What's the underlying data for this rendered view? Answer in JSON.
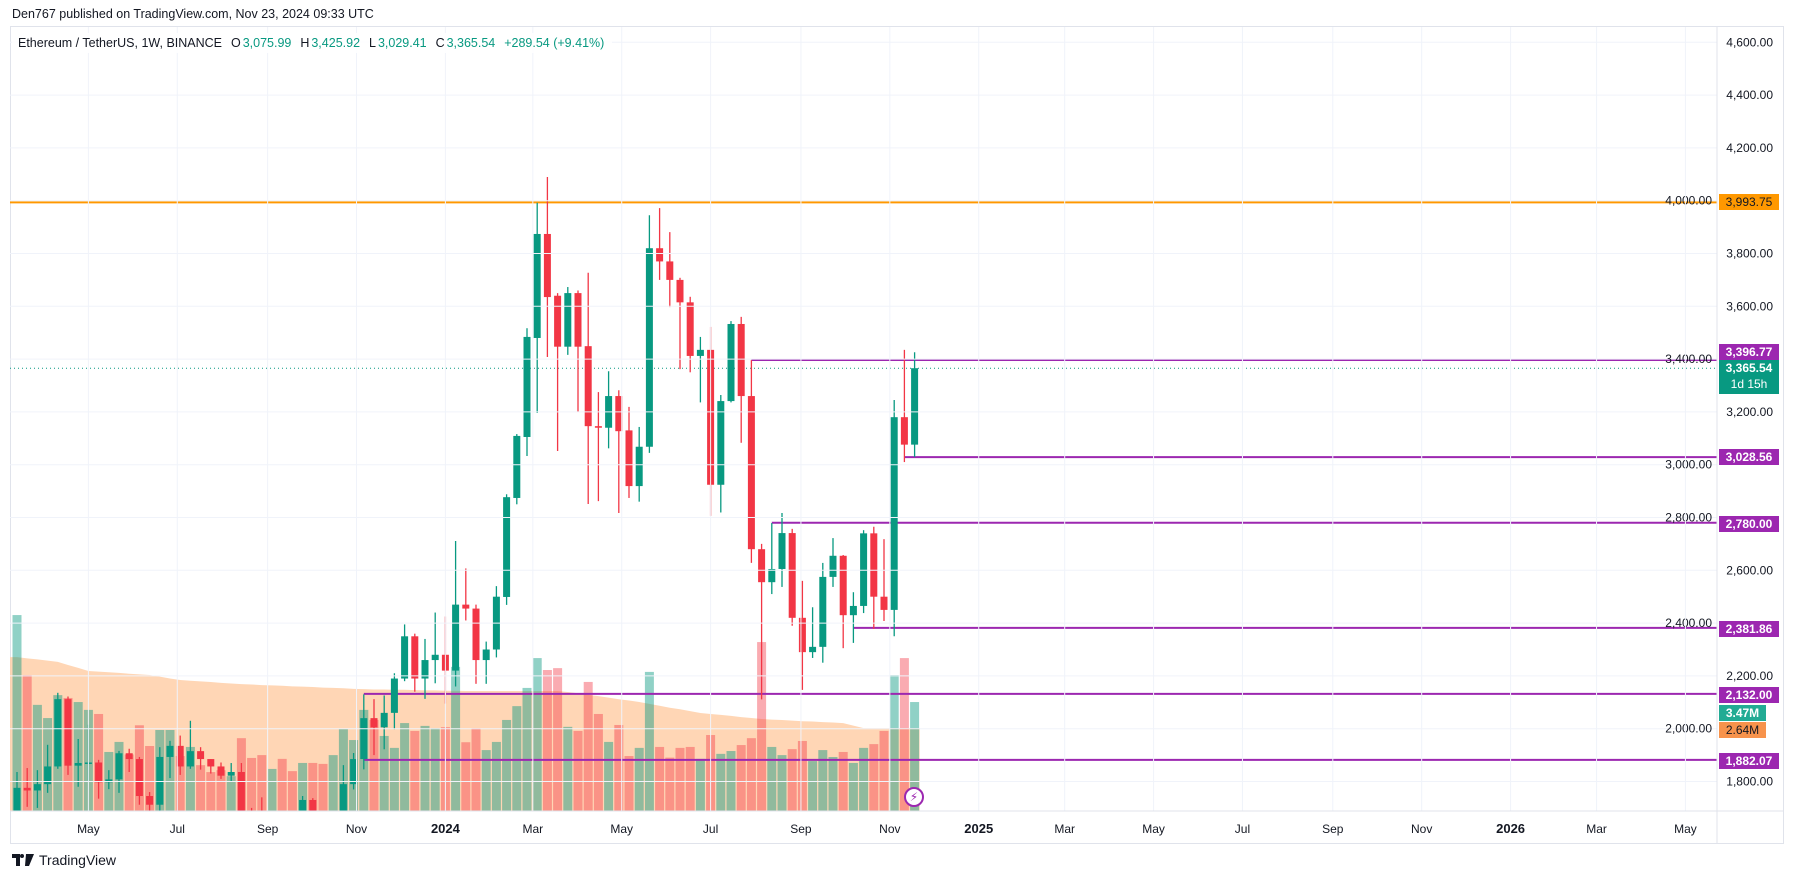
{
  "header": {
    "published": "Den767 published on TradingView.com, Nov 23, 2024 09:33 UTC"
  },
  "legend": {
    "symbol": "Ethereum / TetherUS, 1W, BINANCE",
    "o_label": "O",
    "open": "3,075.99",
    "h_label": "H",
    "high": "3,425.92",
    "l_label": "L",
    "low": "3,029.41",
    "c_label": "C",
    "close": "3,365.54",
    "change": "+289.54 (+9.41%)"
  },
  "colors": {
    "up": "#089981",
    "down": "#f23645",
    "orange_level": "#ff9800",
    "purple_level": "#9c27b0",
    "volume_label": "#22ab94",
    "volume_ma_label": "#f7934c",
    "volume_ma_fill": "#ffcfa8"
  },
  "footer": {
    "brand": "TradingView",
    "logo_icon": "tradingview-logo-icon"
  },
  "price_labels": {
    "orange": "3,993.75",
    "r1": "3,396.77",
    "last": "3,365.54",
    "countdown": "1d 15h",
    "s1": "3,028.56",
    "s2": "2,780.00",
    "s3": "2,381.86",
    "s4": "2,132.00",
    "volume": "3.47M",
    "volume_ma": "2.64M",
    "s5": "1,882.07"
  },
  "chart_data": {
    "type": "candlestick",
    "title": "Ethereum / TetherUS, 1W, BINANCE",
    "interval": "1W",
    "ylim": [
      1688,
      4600
    ],
    "grid": true,
    "y_ticks": [
      {
        "value": 4600,
        "label": "4,600.00"
      },
      {
        "value": 4400,
        "label": "4,400.00"
      },
      {
        "value": 4200,
        "label": "4,200.00"
      },
      {
        "value": 4000,
        "label": "4,000.00"
      },
      {
        "value": 3800,
        "label": "3,800.00"
      },
      {
        "value": 3600,
        "label": "3,600.00"
      },
      {
        "value": 3400,
        "label": "3,400.00"
      },
      {
        "value": 3200,
        "label": "3,200.00"
      },
      {
        "value": 3000,
        "label": "3,000.00"
      },
      {
        "value": 2800,
        "label": "2,800.00"
      },
      {
        "value": 2600,
        "label": "2,600.00"
      },
      {
        "value": 2400,
        "label": "2,400.00"
      },
      {
        "value": 2200,
        "label": "2,200.00"
      },
      {
        "value": 2000,
        "label": "2,000.00"
      },
      {
        "value": 1800,
        "label": "1,800.00"
      }
    ],
    "x_ticks": [
      {
        "date": "2023-05-01",
        "label": "May"
      },
      {
        "date": "2023-07-01",
        "label": "Jul"
      },
      {
        "date": "2023-09-01",
        "label": "Sep"
      },
      {
        "date": "2023-11-01",
        "label": "Nov"
      },
      {
        "date": "2024-01-01",
        "label": "2024",
        "year": true
      },
      {
        "date": "2024-03-01",
        "label": "Mar"
      },
      {
        "date": "2024-05-01",
        "label": "May"
      },
      {
        "date": "2024-07-01",
        "label": "Jul"
      },
      {
        "date": "2024-09-01",
        "label": "Sep"
      },
      {
        "date": "2024-11-01",
        "label": "Nov"
      },
      {
        "date": "2025-01-01",
        "label": "2025",
        "year": true
      },
      {
        "date": "2025-03-01",
        "label": "Mar"
      },
      {
        "date": "2025-05-01",
        "label": "May"
      },
      {
        "date": "2025-07-01",
        "label": "Jul"
      },
      {
        "date": "2025-09-01",
        "label": "Sep"
      },
      {
        "date": "2025-11-01",
        "label": "Nov"
      },
      {
        "date": "2026-01-01",
        "label": "2026",
        "year": true
      },
      {
        "date": "2026-03-01",
        "label": "Mar"
      },
      {
        "date": "2026-05-01",
        "label": "May"
      }
    ],
    "levels": [
      {
        "price": 3993.75,
        "color": "orange",
        "start": null
      },
      {
        "price": 3396.77,
        "color": "purple",
        "start": "2024-07-29"
      },
      {
        "price": 3028.56,
        "color": "purple",
        "start": "2024-11-11"
      },
      {
        "price": 2780.0,
        "color": "purple",
        "start": "2024-08-12"
      },
      {
        "price": 2381.86,
        "color": "purple",
        "start": "2024-10-07"
      },
      {
        "price": 2132.0,
        "color": "purple",
        "start": "2023-11-06"
      },
      {
        "price": 1882.07,
        "color": "purple",
        "start": "2023-11-06"
      }
    ],
    "last_price": 3365.54,
    "columns": [
      "week",
      "open",
      "high",
      "low",
      "close",
      "volume_M",
      "volume_ma_M"
    ],
    "candles": [
      [
        "2023-03-13",
        1565,
        1836,
        1560,
        1776,
        6.24,
        4.9
      ],
      [
        "2023-03-20",
        1776,
        1851,
        1704,
        1766,
        4.33,
        4.86
      ],
      [
        "2023-03-27",
        1766,
        1843,
        1700,
        1790,
        3.38,
        4.83
      ],
      [
        "2023-04-03",
        1790,
        1939,
        1757,
        1857,
        2.96,
        4.79
      ],
      [
        "2023-04-10",
        1857,
        2136,
        1848,
        2112,
        3.69,
        4.75
      ],
      [
        "2023-04-17",
        2112,
        2122,
        1825,
        1860,
        3.6,
        4.65
      ],
      [
        "2023-04-24",
        1860,
        1961,
        1780,
        1870,
        3.47,
        4.56
      ],
      [
        "2023-05-01",
        1870,
        2015,
        1803,
        1872,
        3.22,
        4.46
      ],
      [
        "2023-05-08",
        1872,
        1882,
        1735,
        1797,
        3.09,
        4.44
      ],
      [
        "2023-05-15",
        1797,
        1843,
        1771,
        1808,
        1.88,
        4.42
      ],
      [
        "2023-05-22",
        1808,
        1916,
        1757,
        1907,
        2.2,
        4.4
      ],
      [
        "2023-05-29",
        1907,
        1924,
        1836,
        1885,
        1.8,
        4.37
      ],
      [
        "2023-06-05",
        1885,
        1893,
        1712,
        1745,
        2.73,
        4.35
      ],
      [
        "2023-06-12",
        1745,
        1760,
        1626,
        1712,
        2.07,
        4.33
      ],
      [
        "2023-06-19",
        1712,
        1930,
        1690,
        1893,
        2.58,
        4.28
      ],
      [
        "2023-06-26",
        1893,
        1954,
        1813,
        1935,
        2.58,
        4.22
      ],
      [
        "2023-07-03",
        1935,
        1974,
        1825,
        1857,
        1.75,
        4.17
      ],
      [
        "2023-07-10",
        1857,
        2030,
        1848,
        1915,
        2.04,
        4.15
      ],
      [
        "2023-07-17",
        1915,
        1930,
        1845,
        1885,
        1.46,
        4.13
      ],
      [
        "2023-07-24",
        1885,
        1885,
        1830,
        1857,
        1.24,
        4.11
      ],
      [
        "2023-07-31",
        1857,
        1872,
        1810,
        1822,
        1.3,
        4.08
      ],
      [
        "2023-08-07",
        1822,
        1870,
        1800,
        1836,
        1.11,
        4.06
      ],
      [
        "2023-08-14",
        1836,
        1870,
        1550,
        1680,
        2.32,
        4.04
      ],
      [
        "2023-08-21",
        1680,
        1700,
        1600,
        1650,
        1.69,
        4.03
      ],
      [
        "2023-08-28",
        1650,
        1740,
        1600,
        1630,
        1.78,
        4.01
      ],
      [
        "2023-09-04",
        1630,
        1660,
        1600,
        1635,
        1.34,
        4.0
      ],
      [
        "2023-09-11",
        1635,
        1670,
        1530,
        1625,
        1.66,
        3.99
      ],
      [
        "2023-09-18",
        1625,
        1680,
        1570,
        1590,
        1.27,
        3.97
      ],
      [
        "2023-09-25",
        1590,
        1745,
        1570,
        1730,
        1.53,
        3.96
      ],
      [
        "2023-10-02",
        1730,
        1737,
        1560,
        1580,
        1.53,
        3.95
      ],
      [
        "2023-10-09",
        1580,
        1600,
        1520,
        1555,
        1.5,
        3.93
      ],
      [
        "2023-10-16",
        1555,
        1685,
        1540,
        1660,
        1.78,
        3.92
      ],
      [
        "2023-10-23",
        1660,
        1862,
        1640,
        1790,
        2.61,
        3.91
      ],
      [
        "2023-10-30",
        1790,
        1908,
        1770,
        1885,
        2.26,
        3.89
      ],
      [
        "2023-11-06",
        1885,
        2130,
        1846,
        2040,
        3.22,
        3.88
      ],
      [
        "2023-11-13",
        2040,
        2112,
        1900,
        2005,
        2.9,
        3.87
      ],
      [
        "2023-11-20",
        2005,
        2126,
        1922,
        2060,
        2.39,
        3.87
      ],
      [
        "2023-11-27",
        2060,
        2210,
        1998,
        2190,
        2.01,
        3.86
      ],
      [
        "2023-12-04",
        2190,
        2395,
        2180,
        2350,
        2.8,
        3.86
      ],
      [
        "2023-12-11",
        2350,
        2360,
        2140,
        2190,
        2.55,
        3.85
      ],
      [
        "2023-12-18",
        2190,
        2340,
        2113,
        2260,
        2.71,
        3.84
      ],
      [
        "2023-12-25",
        2260,
        2440,
        2172,
        2280,
        2.64,
        3.84
      ],
      [
        "2024-01-01",
        2280,
        2425,
        2095,
        2220,
        2.67,
        3.83
      ],
      [
        "2024-01-08",
        2220,
        2711,
        2160,
        2470,
        4.59,
        3.83
      ],
      [
        "2024-01-15",
        2470,
        2607,
        2410,
        2455,
        2.19,
        3.82
      ],
      [
        "2024-01-22",
        2455,
        2470,
        2170,
        2260,
        2.64,
        3.82
      ],
      [
        "2024-01-29",
        2260,
        2330,
        2170,
        2300,
        1.94,
        3.82
      ],
      [
        "2024-02-05",
        2300,
        2540,
        2270,
        2500,
        2.2,
        3.82
      ],
      [
        "2024-02-12",
        2499,
        2888,
        2469,
        2877,
        2.9,
        3.82
      ],
      [
        "2024-02-19",
        2874,
        3116,
        2850,
        3109,
        3.34,
        3.82
      ],
      [
        "2024-02-26",
        3105,
        3517,
        3033,
        3484,
        3.92,
        3.82
      ],
      [
        "2024-03-04",
        3480,
        3992,
        3196,
        3874,
        4.87,
        3.82
      ],
      [
        "2024-03-11",
        3874,
        4090,
        3408,
        3635,
        4.49,
        3.82
      ],
      [
        "2024-03-18",
        3640,
        3650,
        3052,
        3447,
        4.55,
        3.82
      ],
      [
        "2024-03-25",
        3447,
        3673,
        3416,
        3650,
        2.68,
        3.79
      ],
      [
        "2024-04-01",
        3650,
        3660,
        3200,
        3447,
        2.55,
        3.75
      ],
      [
        "2024-04-08",
        3449,
        3727,
        2851,
        3146,
        4.11,
        3.7
      ],
      [
        "2024-04-15",
        3146,
        3275,
        2862,
        3140,
        3.09,
        3.66
      ],
      [
        "2024-04-22",
        3140,
        3354,
        3062,
        3260,
        2.2,
        3.61
      ],
      [
        "2024-04-29",
        3260,
        3282,
        2817,
        3127,
        2.74,
        3.56
      ],
      [
        "2024-05-06",
        3130,
        3219,
        2874,
        2919,
        1.75,
        3.52
      ],
      [
        "2024-05-13",
        2919,
        3143,
        2860,
        3068,
        2.01,
        3.47
      ],
      [
        "2024-05-20",
        3068,
        3945,
        3045,
        3820,
        4.43,
        3.41
      ],
      [
        "2024-05-27",
        3820,
        3972,
        3700,
        3770,
        2.04,
        3.35
      ],
      [
        "2024-06-03",
        3770,
        3881,
        3597,
        3700,
        1.7,
        3.29
      ],
      [
        "2024-06-10",
        3700,
        3708,
        3362,
        3615,
        2.01,
        3.24
      ],
      [
        "2024-06-17",
        3615,
        3636,
        3350,
        3412,
        2.04,
        3.18
      ],
      [
        "2024-06-24",
        3412,
        3484,
        3236,
        3435,
        1.66,
        3.12
      ],
      [
        "2024-07-01",
        3435,
        3522,
        2806,
        2924,
        2.42,
        3.09
      ],
      [
        "2024-07-08",
        2924,
        3264,
        2819,
        3241,
        1.82,
        3.06
      ],
      [
        "2024-07-15",
        3241,
        3544,
        3236,
        3533,
        1.91,
        3.03
      ],
      [
        "2024-07-22",
        3533,
        3560,
        3083,
        3260,
        2.1,
        2.99
      ],
      [
        "2024-07-29",
        3260,
        3396,
        2628,
        2680,
        2.32,
        2.96
      ],
      [
        "2024-08-05",
        2680,
        2700,
        2111,
        2555,
        5.38,
        2.93
      ],
      [
        "2024-08-12",
        2555,
        2779,
        2510,
        2605,
        2.04,
        2.91
      ],
      [
        "2024-08-19",
        2605,
        2817,
        2537,
        2741,
        1.78,
        2.9
      ],
      [
        "2024-08-26",
        2741,
        2757,
        2390,
        2420,
        1.97,
        2.88
      ],
      [
        "2024-09-02",
        2420,
        2560,
        2147,
        2290,
        2.23,
        2.86
      ],
      [
        "2024-09-09",
        2290,
        2460,
        2268,
        2310,
        1.59,
        2.85
      ],
      [
        "2024-09-16",
        2310,
        2628,
        2250,
        2575,
        1.94,
        2.83
      ],
      [
        "2024-09-23",
        2575,
        2722,
        2537,
        2655,
        1.72,
        2.82
      ],
      [
        "2024-09-30",
        2655,
        2658,
        2305,
        2430,
        1.88,
        2.8
      ],
      [
        "2024-10-07",
        2430,
        2517,
        2325,
        2465,
        1.53,
        2.72
      ],
      [
        "2024-10-14",
        2465,
        2752,
        2438,
        2740,
        2.01,
        2.64
      ],
      [
        "2024-10-21",
        2740,
        2765,
        2378,
        2500,
        2.13,
        2.64
      ],
      [
        "2024-10-28",
        2500,
        2718,
        2408,
        2450,
        2.55,
        2.64
      ],
      [
        "2024-11-04",
        2450,
        3245,
        2350,
        3180,
        4.33,
        2.64
      ],
      [
        "2024-11-11",
        3180,
        3435,
        3010,
        3075.99,
        4.87,
        2.64
      ],
      [
        "2024-11-18",
        3075.99,
        3425.92,
        3029.41,
        3365.54,
        3.47,
        2.64
      ]
    ]
  }
}
